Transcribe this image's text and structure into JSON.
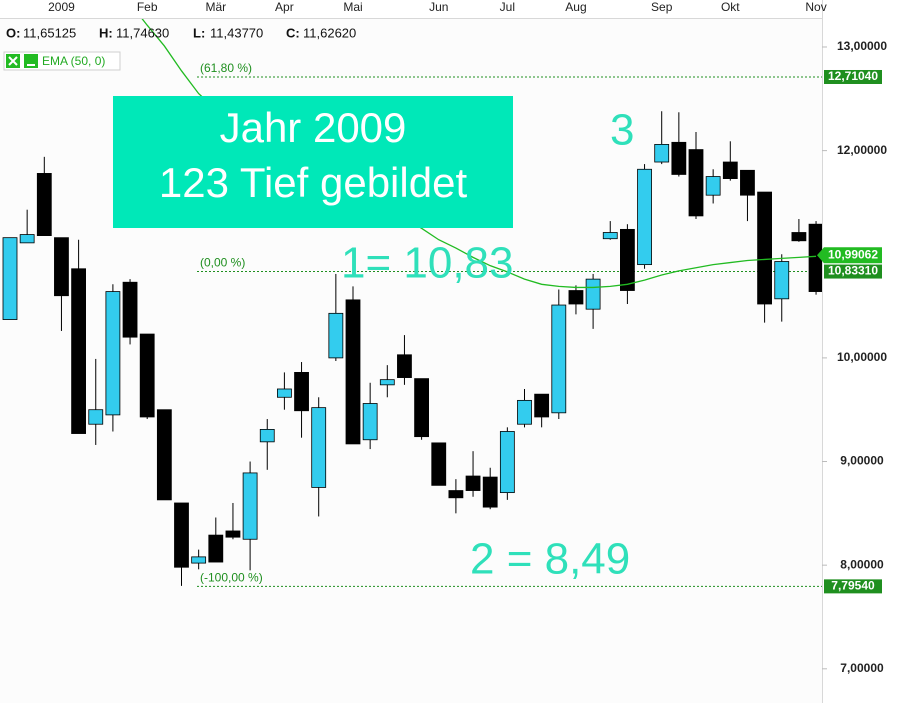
{
  "chart_data": {
    "type": "candlestick",
    "categories": [
      null,
      null,
      null,
      "2009",
      null,
      null,
      null,
      null,
      "Feb",
      null,
      null,
      null,
      "Mär",
      null,
      null,
      null,
      "Apr",
      null,
      null,
      null,
      "Mai",
      null,
      null,
      null,
      null,
      "Jun",
      null,
      null,
      null,
      "Jul",
      null,
      null,
      null,
      "Aug",
      null,
      null,
      null,
      null,
      "Sep",
      null,
      null,
      null,
      "Okt",
      null,
      null,
      null,
      null,
      "Nov"
    ],
    "ohlc": {
      "up_color": "#33ccee",
      "down_color": "#000000",
      "open": [
        10.37,
        11.11,
        11.78,
        11.16,
        10.86,
        9.36,
        9.45,
        10.73,
        10.23,
        9.5,
        8.6,
        8.02,
        8.29,
        8.33,
        8.25,
        9.19,
        9.62,
        9.86,
        8.75,
        10.0,
        10.56,
        9.21,
        9.74,
        10.03,
        9.8,
        9.18,
        8.72,
        8.86,
        8.85,
        8.7,
        9.36,
        9.65,
        9.47,
        10.65,
        10.47,
        11.15,
        11.24,
        10.9,
        11.89,
        12.08,
        12.01,
        11.57,
        11.89,
        11.81,
        11.6,
        10.57,
        11.21,
        11.29
      ],
      "high": [
        11.16,
        11.43,
        11.94,
        11.16,
        11.14,
        9.99,
        10.71,
        10.76,
        10.23,
        9.5,
        8.6,
        8.15,
        8.46,
        8.6,
        9.0,
        9.41,
        9.86,
        9.96,
        9.62,
        10.81,
        10.69,
        9.76,
        9.93,
        10.22,
        9.8,
        9.18,
        8.83,
        9.1,
        8.94,
        9.33,
        9.7,
        9.65,
        10.66,
        10.7,
        10.81,
        11.32,
        11.29,
        11.87,
        12.38,
        12.37,
        12.18,
        11.82,
        12.09,
        11.81,
        11.6,
        11.0,
        11.34,
        11.32
      ],
      "low": [
        10.37,
        11.11,
        11.18,
        10.26,
        9.27,
        9.16,
        9.29,
        10.13,
        9.41,
        8.63,
        7.8,
        7.96,
        8.03,
        8.25,
        7.95,
        8.92,
        9.5,
        9.23,
        8.47,
        9.97,
        9.17,
        9.12,
        9.62,
        9.74,
        9.21,
        8.77,
        8.5,
        8.66,
        8.54,
        8.63,
        9.33,
        9.33,
        9.41,
        10.42,
        10.28,
        11.14,
        10.52,
        10.86,
        11.87,
        11.75,
        11.34,
        11.49,
        11.71,
        11.32,
        10.34,
        10.35,
        11.12,
        10.61
      ],
      "close": [
        11.16,
        11.19,
        11.18,
        10.6,
        9.27,
        9.5,
        10.64,
        10.2,
        9.43,
        8.63,
        7.98,
        8.08,
        8.03,
        8.27,
        8.89,
        9.31,
        9.7,
        9.49,
        9.52,
        10.43,
        9.17,
        9.56,
        9.79,
        9.81,
        9.24,
        8.77,
        8.65,
        8.72,
        8.56,
        9.29,
        9.59,
        9.43,
        10.51,
        10.52,
        10.76,
        11.21,
        10.65,
        11.82,
        12.06,
        11.77,
        11.37,
        11.75,
        11.73,
        11.57,
        10.52,
        10.93,
        11.13,
        10.64
      ]
    },
    "series": [
      {
        "name": "EMA (50, 0)",
        "color": "#22bb22",
        "values": [
          null,
          null,
          null,
          null,
          null,
          null,
          null,
          13.42,
          13.21,
          13.01,
          12.77,
          12.55,
          12.4,
          12.28,
          12.16,
          12.05,
          11.95,
          11.85,
          11.76,
          11.68,
          11.59,
          11.51,
          11.43,
          11.35,
          11.25,
          11.14,
          11.06,
          10.97,
          10.89,
          10.83,
          10.76,
          10.71,
          10.69,
          10.68,
          10.68,
          10.69,
          10.71,
          10.75,
          10.8,
          10.84,
          10.87,
          10.9,
          10.92,
          10.94,
          10.95,
          10.96,
          10.97,
          10.98
        ],
        "marker": {
          "value": 10.99062,
          "label": "10,99062"
        }
      }
    ],
    "header": [
      {
        "label": "O:",
        "value": 11.65125,
        "value_label": "11,65125"
      },
      {
        "label": "H:",
        "value": 11.7463,
        "value_label": "11,74630"
      },
      {
        "label": "L:",
        "value": 11.4377,
        "value_label": "11,43770"
      },
      {
        "label": "C:",
        "value": 11.6262,
        "value_label": "11,62620"
      }
    ],
    "levels": [
      {
        "name": "(61,80 %)",
        "value": 12.7104,
        "label": "12,71040"
      },
      {
        "name": "(0,00 %)",
        "value": 10.8331,
        "label": "10,83310"
      },
      {
        "name": "(-100,00 %)",
        "value": 7.7954,
        "label": "7,79540"
      }
    ],
    "level_color": "#1f8f1f",
    "ylim": [
      6.67,
      13.27
    ],
    "yticks": [
      {
        "value": 7,
        "label": "7,00000"
      },
      {
        "value": 8,
        "label": "8,00000"
      },
      {
        "value": 9,
        "label": "9,00000"
      },
      {
        "value": 10,
        "label": "10,00000"
      },
      {
        "value": 12,
        "label": "12,00000"
      },
      {
        "value": 13,
        "label": "13,00000"
      }
    ],
    "box_text": [
      "Jahr 2009",
      "123 Tief gebildet"
    ],
    "annotations": [
      "1= 10,83",
      "2 = 8,49",
      "3"
    ]
  }
}
